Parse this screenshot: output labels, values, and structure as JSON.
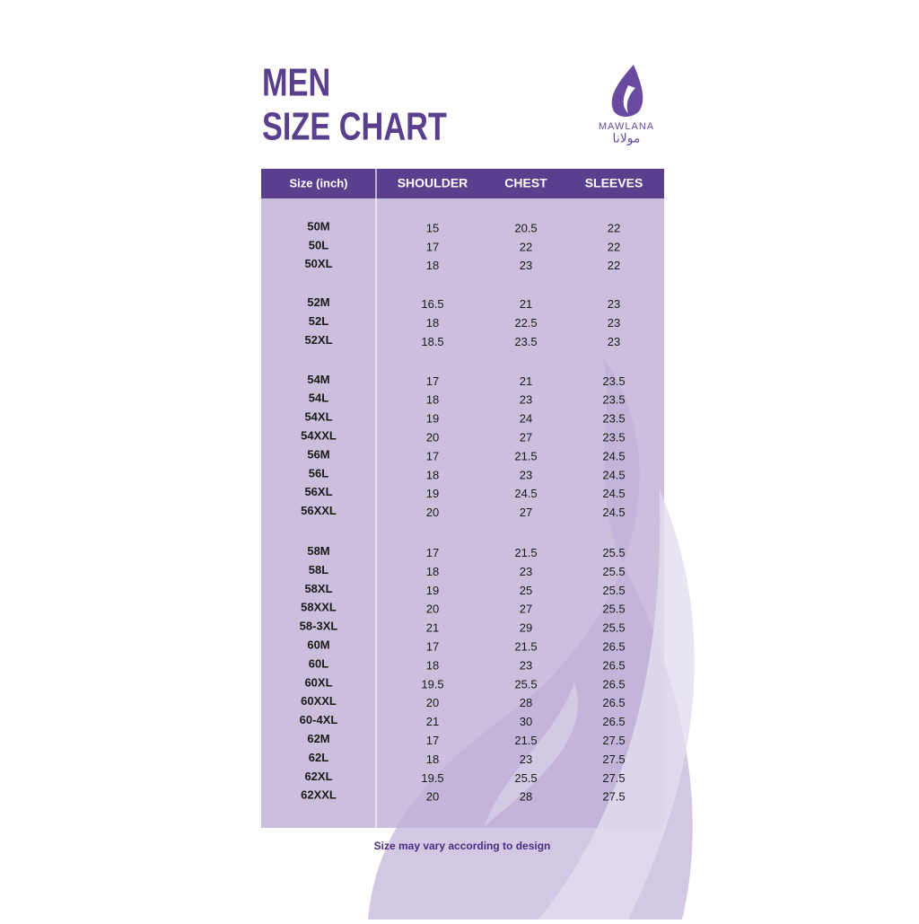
{
  "header": {
    "title_lines": [
      "MEN",
      "SIZE CHART"
    ],
    "logo_text": "MAWLANA",
    "logo_arabic": "مولانا"
  },
  "table": {
    "columns": [
      "Size (inch)",
      "SHOULDER",
      "CHEST",
      "SLEEVES"
    ],
    "groups": [
      {
        "rows": [
          [
            "50M",
            15,
            20.5,
            22
          ],
          [
            "50L",
            17,
            22,
            22
          ],
          [
            "50XL",
            18,
            23,
            22
          ]
        ]
      },
      {
        "rows": [
          [
            "52M",
            16.5,
            21,
            23
          ],
          [
            "52L",
            18,
            22.5,
            23
          ],
          [
            "52XL",
            18.5,
            23.5,
            23
          ]
        ]
      },
      {
        "rows": [
          [
            "54M",
            17,
            21,
            23.5
          ],
          [
            "54L",
            18,
            23,
            23.5
          ],
          [
            "54XL",
            19,
            24,
            23.5
          ],
          [
            "54XXL",
            20,
            27,
            23.5
          ],
          [
            "56M",
            17,
            21.5,
            24.5
          ],
          [
            "56L",
            18,
            23,
            24.5
          ],
          [
            "56XL",
            19,
            24.5,
            24.5
          ],
          [
            "56XXL",
            20,
            27,
            24.5
          ]
        ]
      },
      {
        "rows": [
          [
            "58M",
            17,
            21.5,
            25.5
          ],
          [
            "58L",
            18,
            23,
            25.5
          ],
          [
            "58XL",
            19,
            25,
            25.5
          ],
          [
            "58XXL",
            20,
            27,
            25.5
          ],
          [
            "58-3XL",
            21,
            29,
            25.5
          ],
          [
            "60M",
            17,
            21.5,
            26.5
          ],
          [
            "60L",
            18,
            23,
            26.5
          ],
          [
            "60XL",
            19.5,
            25.5,
            26.5
          ],
          [
            "60XXL",
            20,
            28,
            26.5
          ],
          [
            "60-4XL",
            21,
            30,
            26.5
          ],
          [
            "62M",
            17,
            21.5,
            27.5
          ],
          [
            "62L",
            18,
            23,
            27.5
          ],
          [
            "62XL",
            19.5,
            25.5,
            27.5
          ],
          [
            "62XXL",
            20,
            28,
            27.5
          ]
        ]
      }
    ]
  },
  "footer": {
    "note": "Size may vary according to design"
  }
}
